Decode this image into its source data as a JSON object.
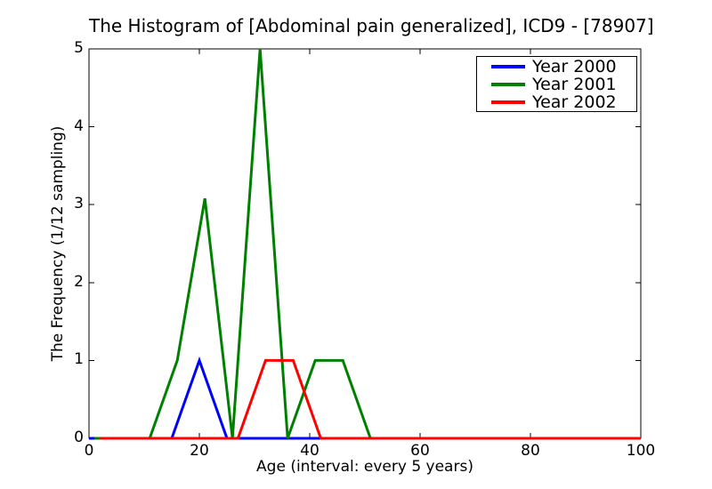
{
  "chart_data": {
    "type": "line",
    "title": "The Histogram of [Abdominal pain generalized], ICD9 - [78907]",
    "xlabel": "Age (interval: every 5 years)",
    "ylabel": "The Frequency (1/12 sampling)",
    "xlim": [
      0,
      100
    ],
    "ylim": [
      0,
      5
    ],
    "xticks": [
      0,
      20,
      40,
      60,
      80,
      100
    ],
    "yticks": [
      0,
      1,
      2,
      3,
      4,
      5
    ],
    "grid": false,
    "legend_position": "upper right",
    "line_width": 3,
    "frame_color": "#000000",
    "background_color": "#ffffff",
    "series": [
      {
        "name": "Year 2000",
        "color": "#0000ff",
        "points": [
          [
            0,
            0
          ],
          [
            5,
            0
          ],
          [
            10,
            0
          ],
          [
            15,
            0
          ],
          [
            20,
            1
          ],
          [
            25,
            0
          ],
          [
            30,
            0
          ],
          [
            35,
            0
          ],
          [
            40,
            0
          ],
          [
            45,
            0
          ],
          [
            50,
            0
          ],
          [
            55,
            0
          ],
          [
            60,
            0
          ],
          [
            65,
            0
          ],
          [
            70,
            0
          ],
          [
            75,
            0
          ],
          [
            80,
            0
          ],
          [
            85,
            0
          ],
          [
            90,
            0
          ],
          [
            95,
            0
          ],
          [
            100,
            0
          ]
        ]
      },
      {
        "name": "Year 2001",
        "color": "#008000",
        "points": [
          [
            1,
            0
          ],
          [
            6,
            0
          ],
          [
            11,
            0
          ],
          [
            16,
            1
          ],
          [
            21,
            3.08
          ],
          [
            26,
            0
          ],
          [
            31,
            5
          ],
          [
            36,
            0
          ],
          [
            41,
            1
          ],
          [
            46,
            1
          ],
          [
            51,
            0
          ],
          [
            56,
            0
          ],
          [
            61,
            0
          ],
          [
            66,
            0
          ],
          [
            71,
            0
          ],
          [
            76,
            0
          ],
          [
            81,
            0
          ],
          [
            86,
            0
          ],
          [
            91,
            0
          ],
          [
            96,
            0
          ],
          [
            100,
            0
          ]
        ]
      },
      {
        "name": "Year 2002",
        "color": "#ff0000",
        "points": [
          [
            2,
            0
          ],
          [
            7,
            0
          ],
          [
            12,
            0
          ],
          [
            17,
            0
          ],
          [
            22,
            0
          ],
          [
            27,
            0
          ],
          [
            32,
            1
          ],
          [
            37,
            1
          ],
          [
            42,
            0
          ],
          [
            47,
            0
          ],
          [
            52,
            0
          ],
          [
            57,
            0
          ],
          [
            62,
            0
          ],
          [
            67,
            0
          ],
          [
            72,
            0
          ],
          [
            77,
            0
          ],
          [
            82,
            0
          ],
          [
            87,
            0
          ],
          [
            92,
            0
          ],
          [
            97,
            0
          ],
          [
            100,
            0
          ]
        ]
      }
    ]
  }
}
